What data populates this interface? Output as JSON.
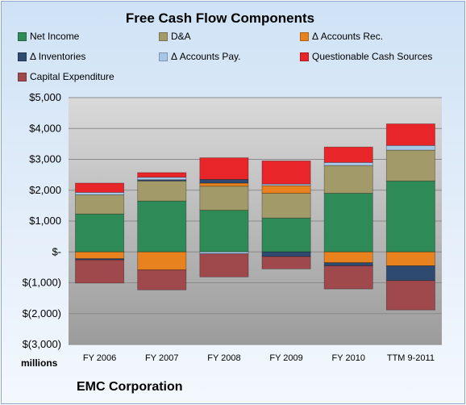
{
  "chart_data": {
    "type": "bar",
    "stacked": true,
    "title": "Free Cash Flow Components",
    "subtitle": "EMC Corporation",
    "ylabel": "",
    "units": "millions",
    "ylim": [
      -3000,
      5000
    ],
    "yticks": [
      5000,
      4000,
      3000,
      2000,
      1000,
      0,
      -1000,
      -2000,
      -3000
    ],
    "ytick_labels": [
      "$5,000",
      "$4,000",
      "$3,000",
      "$2,000",
      "$1,000",
      "$-",
      "$(1,000)",
      "$(2,000)",
      "$(3,000)"
    ],
    "categories": [
      "FY 2006",
      "FY 2007",
      "FY 2008",
      "FY 2009",
      "FY 2010",
      "TTM 9-2011"
    ],
    "grid": true,
    "legend_position": "top",
    "series": [
      {
        "name": "Net Income",
        "color": "#2e8b57",
        "values": [
          1230,
          1650,
          1350,
          1100,
          1900,
          2300
        ]
      },
      {
        "name": "D&A",
        "color": "#a39a6a",
        "values": [
          620,
          650,
          780,
          800,
          900,
          1000
        ]
      },
      {
        "name": "Δ Accounts Rec.",
        "color": "#e8821e",
        "values": [
          -220,
          -580,
          100,
          250,
          -350,
          -450
        ]
      },
      {
        "name": "Δ Inventories",
        "color": "#2f4a70",
        "values": [
          -40,
          40,
          120,
          -150,
          -100,
          -480
        ]
      },
      {
        "name": "Δ Accounts Pay.",
        "color": "#a7c7e8",
        "values": [
          80,
          80,
          -60,
          50,
          100,
          150
        ]
      },
      {
        "name": "Questionable Cash Sources",
        "color": "#e8262a",
        "values": [
          300,
          150,
          700,
          750,
          500,
          700
        ]
      },
      {
        "name": "Capital Expenditure",
        "color": "#a0494d",
        "values": [
          -750,
          -650,
          -750,
          -400,
          -750,
          -950
        ]
      }
    ]
  }
}
